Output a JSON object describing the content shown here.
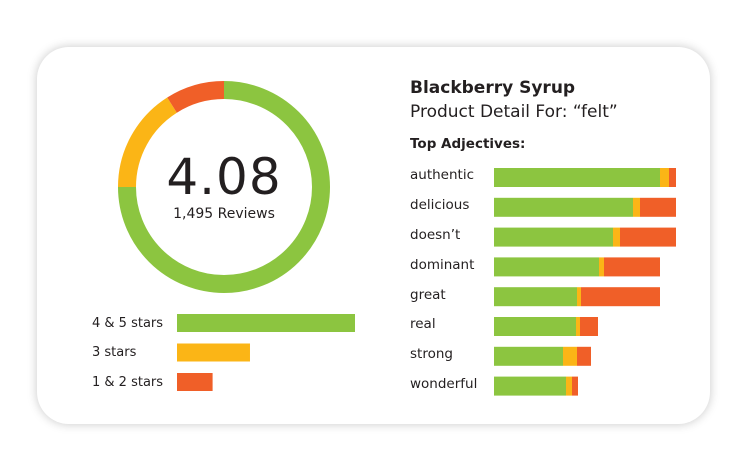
{
  "colors": {
    "positive": "#8cc540",
    "neutral": "#fbb516",
    "negative": "#f05f28"
  },
  "chart_data": [
    {
      "type": "pie",
      "variant": "donut",
      "center_value": "4.08",
      "center_label": "1,495 Reviews",
      "slices": [
        {
          "key": "positive",
          "value": 75
        },
        {
          "key": "neutral",
          "value": 16
        },
        {
          "key": "negative",
          "value": 9
        }
      ]
    },
    {
      "type": "bar",
      "orientation": "horizontal",
      "categories": [
        "4 & 5 stars",
        "3 stars",
        "1 & 2 stars"
      ],
      "values": [
        100,
        41,
        20
      ],
      "keys": [
        "positive",
        "neutral",
        "negative"
      ]
    },
    {
      "type": "bar",
      "orientation": "horizontal",
      "stacked": true,
      "title": "Blackberry Syrup",
      "subtitle": "Product Detail For: “felt”",
      "heading": "Top Adjectives:",
      "categories": [
        "authentic",
        "delicious",
        "doesn’t",
        "dominant",
        "great",
        "real",
        "strong",
        "wonderful"
      ],
      "series": [
        {
          "key": "positive",
          "values": [
            166,
            139,
            119,
            105,
            83,
            82,
            69,
            72
          ]
        },
        {
          "key": "neutral",
          "values": [
            9,
            7,
            7,
            5,
            4,
            4,
            14,
            6
          ]
        },
        {
          "key": "negative",
          "values": [
            7,
            36,
            56,
            56,
            79,
            18,
            14,
            6
          ]
        }
      ]
    }
  ]
}
